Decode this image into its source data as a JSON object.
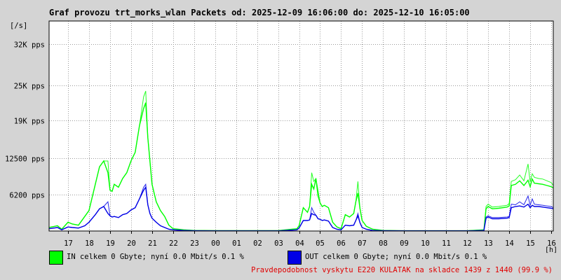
{
  "title": "Graf provozu trt_morks_wlan Packets od: 2025-12-09 16:06:00 do: 2025-12-10 16:05:00",
  "legend": [
    {
      "name": "IN",
      "color": "#00ff00",
      "text": "IN celkem 0 Gbyte; nyní   0.0 Mbit/s 0.1 %"
    },
    {
      "name": "OUT",
      "color": "#0000e6",
      "text": "OUT celkem 0 Gbyte; nyní   0.0 Mbit/s 0.1 %"
    }
  ],
  "footer_note": "Pravdepodobnost vyskytu E220 KULATAK na skladce 1439 z 1440 (99.9 %)",
  "colors": {
    "in": "#00ff00",
    "out": "#0000e6",
    "background": "#d4d4d4",
    "plot": "#ffffff",
    "grid": "#808080",
    "note": "#e00000"
  },
  "chart_data": {
    "type": "area",
    "title": "Graf provozu trt_morks_wlan Packets od: 2025-12-09 16:06:00 do: 2025-12-10 16:05:00",
    "xlabel": "[h]",
    "ylabel": "[/s]",
    "x_range": [
      16.1,
      40.1
    ],
    "ylim": [
      0,
      36000
    ],
    "y_ticks": [
      {
        "value": 6200,
        "label": "6200 pps"
      },
      {
        "value": 12500,
        "label": "12500 pps"
      },
      {
        "value": 19000,
        "label": "19K pps"
      },
      {
        "value": 25000,
        "label": "25K pps"
      },
      {
        "value": 32000,
        "label": "32K pps"
      }
    ],
    "x_ticks": [
      {
        "value": 17,
        "label": "17"
      },
      {
        "value": 18,
        "label": "18"
      },
      {
        "value": 19,
        "label": "19"
      },
      {
        "value": 20,
        "label": "20"
      },
      {
        "value": 21,
        "label": "21"
      },
      {
        "value": 22,
        "label": "22"
      },
      {
        "value": 23,
        "label": "23"
      },
      {
        "value": 24,
        "label": "00"
      },
      {
        "value": 25,
        "label": "01"
      },
      {
        "value": 26,
        "label": "02"
      },
      {
        "value": 27,
        "label": "03"
      },
      {
        "value": 28,
        "label": "04"
      },
      {
        "value": 29,
        "label": "05"
      },
      {
        "value": 30,
        "label": "06"
      },
      {
        "value": 31,
        "label": "07"
      },
      {
        "value": 32,
        "label": "08"
      },
      {
        "value": 33,
        "label": "09"
      },
      {
        "value": 34,
        "label": "10"
      },
      {
        "value": 35,
        "label": "11"
      },
      {
        "value": 36,
        "label": "12"
      },
      {
        "value": 37,
        "label": "13"
      },
      {
        "value": 38,
        "label": "14"
      },
      {
        "value": 39,
        "label": "15"
      },
      {
        "value": 40,
        "label": "16"
      }
    ],
    "grid": true,
    "legend_position": "bottom",
    "series": [
      {
        "name": "IN",
        "color": "#00ff00",
        "x": [
          16.1,
          16.5,
          16.7,
          17.0,
          17.2,
          17.5,
          17.8,
          18.0,
          18.3,
          18.5,
          18.7,
          18.9,
          19.0,
          19.1,
          19.2,
          19.4,
          19.6,
          19.8,
          20.0,
          20.2,
          20.4,
          20.6,
          20.7,
          20.8,
          20.9,
          21.0,
          21.2,
          21.4,
          21.6,
          21.8,
          22.0,
          22.5,
          23.0,
          24.0,
          25.0,
          26.0,
          27.0,
          27.9,
          28.0,
          28.2,
          28.4,
          28.5,
          28.6,
          28.7,
          28.8,
          28.9,
          29.0,
          29.1,
          29.2,
          29.4,
          29.6,
          29.8,
          30.0,
          30.2,
          30.4,
          30.6,
          30.7,
          30.8,
          30.9,
          31.0,
          31.2,
          31.5,
          32.0,
          33.0,
          34.0,
          35.0,
          36.0,
          36.8,
          36.9,
          37.0,
          37.2,
          37.5,
          37.9,
          38.0,
          38.1,
          38.3,
          38.5,
          38.7,
          38.9,
          39.0,
          39.1,
          39.2,
          39.4,
          39.6,
          39.8,
          40.0,
          40.1
        ],
        "y": [
          600,
          900,
          300,
          1500,
          1200,
          1000,
          2500,
          3500,
          8000,
          11000,
          12000,
          10000,
          7000,
          6800,
          8000,
          7500,
          9000,
          10000,
          12000,
          13500,
          18000,
          21000,
          22000,
          16000,
          12000,
          8000,
          5000,
          3500,
          2500,
          1000,
          400,
          200,
          100,
          60,
          60,
          60,
          60,
          400,
          900,
          4000,
          3200,
          4200,
          8000,
          7200,
          9000,
          6000,
          4800,
          4200,
          4400,
          4000,
          1500,
          700,
          400,
          2800,
          2400,
          3000,
          5000,
          6500,
          3800,
          1800,
          800,
          300,
          100,
          50,
          50,
          50,
          50,
          200,
          3800,
          4200,
          3800,
          3900,
          4100,
          4300,
          7800,
          8000,
          8600,
          7800,
          8700,
          7600,
          8900,
          8200,
          8100,
          8000,
          7800,
          7600,
          7400
        ],
        "y_max": [
          600,
          900,
          300,
          1500,
          1200,
          1000,
          2500,
          3500,
          8000,
          11000,
          12000,
          12000,
          7000,
          6800,
          8000,
          7500,
          9000,
          10000,
          12000,
          13500,
          18000,
          23000,
          24000,
          16000,
          12000,
          8000,
          5000,
          3500,
          2500,
          1000,
          400,
          200,
          100,
          60,
          60,
          60,
          60,
          400,
          900,
          4000,
          3200,
          4200,
          10000,
          8500,
          9000,
          7000,
          4800,
          4200,
          4400,
          4000,
          1500,
          700,
          400,
          2800,
          2400,
          3000,
          5000,
          8500,
          3800,
          1800,
          800,
          300,
          100,
          50,
          50,
          50,
          50,
          200,
          4200,
          4600,
          4100,
          4200,
          4400,
          4700,
          8500,
          8800,
          9600,
          8600,
          11500,
          8400,
          9800,
          9200,
          9000,
          8900,
          8600,
          8300,
          7800
        ]
      },
      {
        "name": "OUT",
        "color": "#0000e6",
        "x": [
          16.1,
          16.5,
          16.7,
          17.0,
          17.2,
          17.5,
          17.8,
          18.0,
          18.3,
          18.5,
          18.7,
          18.9,
          19.0,
          19.1,
          19.2,
          19.4,
          19.6,
          19.8,
          20.0,
          20.2,
          20.4,
          20.6,
          20.7,
          20.8,
          20.9,
          21.0,
          21.2,
          21.4,
          21.6,
          21.8,
          22.0,
          22.5,
          23.0,
          24.0,
          25.0,
          26.0,
          27.0,
          27.9,
          28.0,
          28.2,
          28.4,
          28.5,
          28.6,
          28.7,
          28.8,
          28.9,
          29.0,
          29.1,
          29.2,
          29.4,
          29.6,
          29.8,
          30.0,
          30.2,
          30.4,
          30.6,
          30.7,
          30.8,
          30.9,
          31.0,
          31.2,
          31.5,
          32.0,
          33.0,
          34.0,
          35.0,
          36.0,
          36.8,
          36.9,
          37.0,
          37.2,
          37.5,
          37.9,
          38.0,
          38.1,
          38.3,
          38.5,
          38.7,
          38.9,
          39.0,
          39.1,
          39.2,
          39.4,
          39.6,
          39.8,
          40.0,
          40.1
        ],
        "y": [
          400,
          600,
          200,
          700,
          600,
          500,
          900,
          1500,
          2800,
          3800,
          4200,
          3000,
          2600,
          2400,
          2500,
          2300,
          2800,
          3000,
          3600,
          4000,
          5500,
          7000,
          7500,
          4500,
          3000,
          2200,
          1500,
          900,
          600,
          300,
          200,
          100,
          50,
          30,
          30,
          30,
          30,
          200,
          500,
          1800,
          1800,
          1900,
          3000,
          2800,
          2700,
          2100,
          2000,
          1800,
          1900,
          1700,
          600,
          300,
          200,
          1000,
          900,
          1000,
          1800,
          2600,
          1400,
          600,
          300,
          100,
          50,
          30,
          30,
          30,
          30,
          100,
          2200,
          2400,
          2100,
          2100,
          2200,
          2300,
          4000,
          4200,
          4300,
          4100,
          4600,
          4000,
          4400,
          4200,
          4200,
          4100,
          4000,
          3900,
          3800
        ],
        "y_max": [
          400,
          600,
          200,
          700,
          600,
          500,
          900,
          1500,
          2800,
          3800,
          4200,
          5000,
          2600,
          2400,
          2500,
          2300,
          2800,
          3000,
          3600,
          4000,
          5500,
          7500,
          8000,
          4500,
          3000,
          2200,
          1500,
          900,
          600,
          300,
          200,
          100,
          50,
          30,
          30,
          30,
          30,
          200,
          500,
          1800,
          1800,
          1900,
          4000,
          3200,
          2700,
          2100,
          2000,
          1800,
          1900,
          1700,
          600,
          300,
          200,
          1000,
          900,
          1000,
          1800,
          3000,
          1400,
          600,
          300,
          100,
          50,
          30,
          30,
          30,
          30,
          100,
          2400,
          2600,
          2300,
          2300,
          2400,
          2500,
          4600,
          4500,
          5000,
          4500,
          6000,
          4400,
          5500,
          4600,
          4500,
          4400,
          4300,
          4200,
          4000
        ]
      }
    ]
  }
}
